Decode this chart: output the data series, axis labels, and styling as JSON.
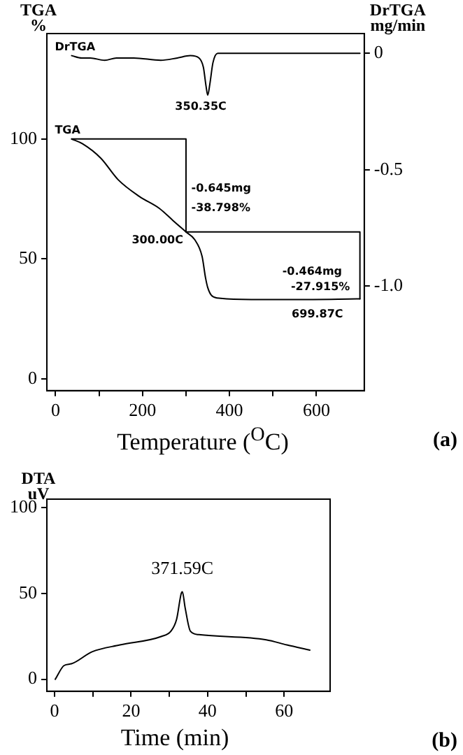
{
  "chart_data": [
    {
      "type": "line",
      "xlabel": "Temperature ($^{O}$C)",
      "ylabel": "TGA\n%",
      "y2label": "DrTGA\nmg/min",
      "xlim": [
        -20,
        710
      ],
      "xticks": [
        0,
        {
          "value": 100,
          "label": null
        },
        200,
        {
          "value": 300,
          "label": null
        },
        400,
        {
          "value": 500,
          "label": null
        },
        600
      ],
      "ylim": [
        -5,
        144
      ],
      "yticks": [
        0,
        50,
        100
      ],
      "y2lim": [
        -1.45,
        0.085
      ],
      "y2ticks": [
        0,
        -0.5,
        {
          "value": -1,
          "label": "-1.0"
        }
      ],
      "series": [
        {
          "name": "DrTGA",
          "color": "#000000",
          "axis": "y2",
          "x": [
            37,
            60,
            80,
            113,
            140,
            180,
            242,
            280,
            310,
            330,
            340,
            346,
            350,
            355,
            362,
            373,
            450,
            700
          ],
          "values": [
            -0.01,
            -0.02,
            -0.02,
            -0.03,
            -0.02,
            -0.02,
            -0.03,
            -0.02,
            -0.01,
            -0.02,
            -0.06,
            -0.14,
            -0.18,
            -0.13,
            -0.04,
            0,
            0,
            0
          ]
        },
        {
          "name": "TGA",
          "color": "#000000",
          "x": [
            37,
            62,
            104,
            144,
            193,
            239,
            270,
            300,
            320,
            337,
            345,
            350,
            360,
            380,
            450,
            550,
            700
          ],
          "values": [
            100,
            98,
            92,
            83,
            76,
            71,
            66,
            61.2,
            58,
            51,
            42,
            38,
            34.5,
            33.5,
            33,
            33,
            33.3
          ]
        },
        {
          "color": "#000000",
          "x": [
            37,
            300,
            300
          ],
          "values": [
            100,
            100,
            61.2
          ]
        },
        {
          "color": "#000000",
          "x": [
            300,
            700,
            700
          ],
          "values": [
            61.2,
            61.2,
            33.3
          ]
        }
      ],
      "annotations": [
        "350.35C",
        "-0.645mg",
        "-38.798%",
        {
          "text": "300.00C",
          "x": 300,
          "y": 61.2
        },
        "-0.464mg",
        "-27.915%",
        {
          "text": "699.87C",
          "x": 700,
          "y": 33.3
        },
        "(a)"
      ]
    },
    {
      "type": "line",
      "xlabel": "Time (min)",
      "ylabel": "DTA\nuV",
      "xlim": [
        -2,
        72
      ],
      "xticks": [
        0,
        {
          "value": 10,
          "label": null
        },
        20,
        {
          "value": 30,
          "label": null
        },
        40,
        {
          "value": 50,
          "label": null
        },
        60
      ],
      "ylim": [
        -7,
        105
      ],
      "yticks": [
        0,
        50,
        100
      ],
      "series": [
        {
          "color": "#000000",
          "x": [
            0.2,
            2.5,
            4.4,
            9.8,
            17.1,
            28,
            30.4,
            31.9,
            33.1,
            33.4,
            34.1,
            35.5,
            37.7,
            55.3,
            60.7,
            66.7
          ],
          "values": [
            0,
            8,
            9,
            16,
            20,
            25,
            28,
            35,
            50,
            51,
            42,
            28,
            26,
            23,
            20,
            17
          ]
        }
      ],
      "annotations": [
        {
          "text": "371.59C",
          "x": 33.4,
          "y": 51
        },
        "(b)"
      ]
    }
  ]
}
